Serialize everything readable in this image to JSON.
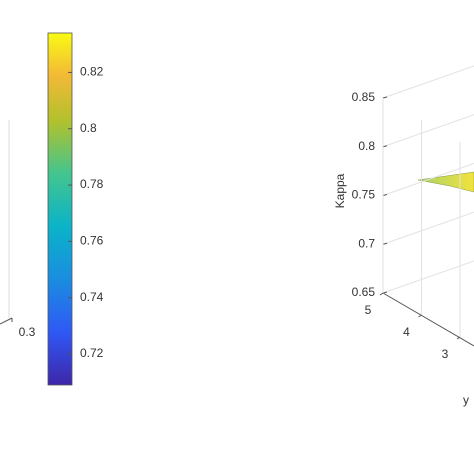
{
  "chart_data": [
    {
      "type": "axis3d",
      "xticks": [
        0.3
      ]
    },
    {
      "type": "colorbar",
      "clim": [
        0.709,
        0.834
      ],
      "ticks": [
        0.72,
        0.74,
        0.76,
        0.78,
        0.8,
        0.82
      ]
    },
    {
      "type": "surface3d",
      "zlabel": "Kappa",
      "ylabel": "y",
      "zlim": [
        0.65,
        0.85
      ],
      "zticks": [
        0.65,
        0.7,
        0.75,
        0.8,
        0.85
      ],
      "yticks": [
        3,
        4,
        5
      ],
      "grid": true
    }
  ]
}
